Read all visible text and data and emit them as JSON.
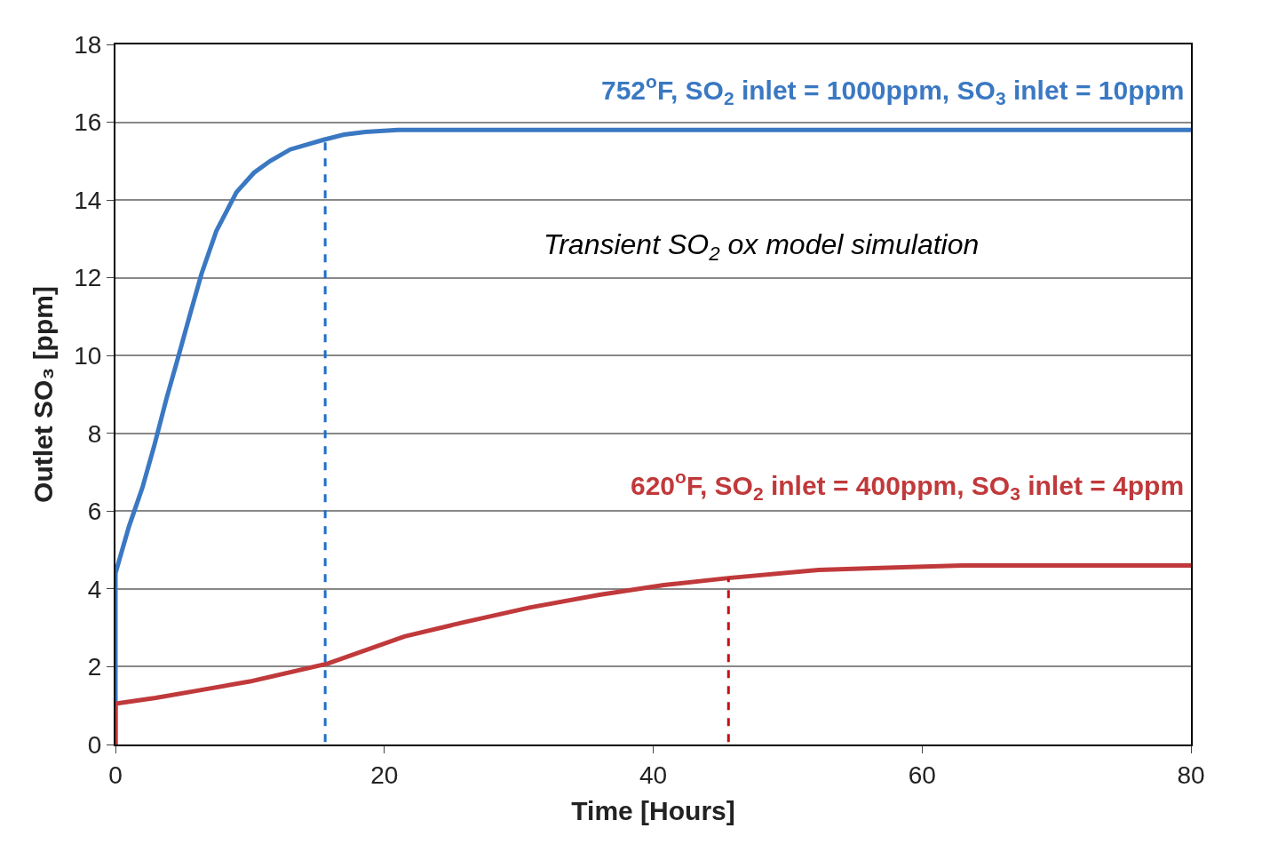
{
  "chart_data": {
    "type": "line",
    "xlabel": "Time [Hours]",
    "ylabel": "Outlet SO₃ [ppm]",
    "xlim": [
      0,
      80
    ],
    "xticks": [
      0,
      20,
      40,
      60,
      80
    ],
    "ylim": [
      0,
      18
    ],
    "yticks": [
      0,
      2,
      4,
      6,
      8,
      10,
      12,
      14,
      16,
      18
    ],
    "grid": "y",
    "marker": "none",
    "line_style": "solid",
    "series": [
      {
        "color": "#3a78c2",
        "x": [
          0,
          0,
          1,
          2,
          2.9,
          3.8,
          4.7,
          5.5,
          6.4,
          7.5,
          9,
          10.3,
          11.5,
          13,
          15.5,
          17,
          18.6,
          21,
          25,
          30,
          40,
          60,
          80
        ],
        "values": [
          0,
          4.4,
          5.6,
          6.6,
          7.7,
          8.9,
          10,
          11,
          12.1,
          13.2,
          14.2,
          14.7,
          15,
          15.3,
          15.55,
          15.68,
          15.75,
          15.8,
          15.8,
          15.8,
          15.8,
          15.8,
          15.8
        ]
      },
      {
        "color": "#c0393b",
        "x": [
          0,
          0,
          3,
          6,
          10,
          15.8,
          21.5,
          26,
          30.8,
          36,
          40.8,
          45.6,
          52.3,
          58,
          63,
          70,
          80
        ],
        "values": [
          0,
          1.05,
          1.2,
          1.38,
          1.62,
          2.08,
          2.78,
          3.15,
          3.52,
          3.85,
          4.1,
          4.28,
          4.49,
          4.55,
          4.6,
          4.6,
          4.6
        ]
      }
    ],
    "ref_lines": [
      {
        "axis": "x",
        "value": 15.6,
        "color": "#1f6fc5",
        "line_style": "dashed"
      },
      {
        "axis": "x",
        "value": 45.6,
        "color": "#c0121a",
        "line_style": "dashed"
      }
    ],
    "annotations": [
      "752$^{o}$F, SO$_{2}$ inlet = 1000ppm, SO$_{3}$ inlet = 10ppm",
      "620$^{o}$F, SO$_{2}$ inlet = 400ppm, SO$_{3}$ inlet = 4ppm",
      "Transient SO$_{2}$ ox model simulation"
    ]
  }
}
